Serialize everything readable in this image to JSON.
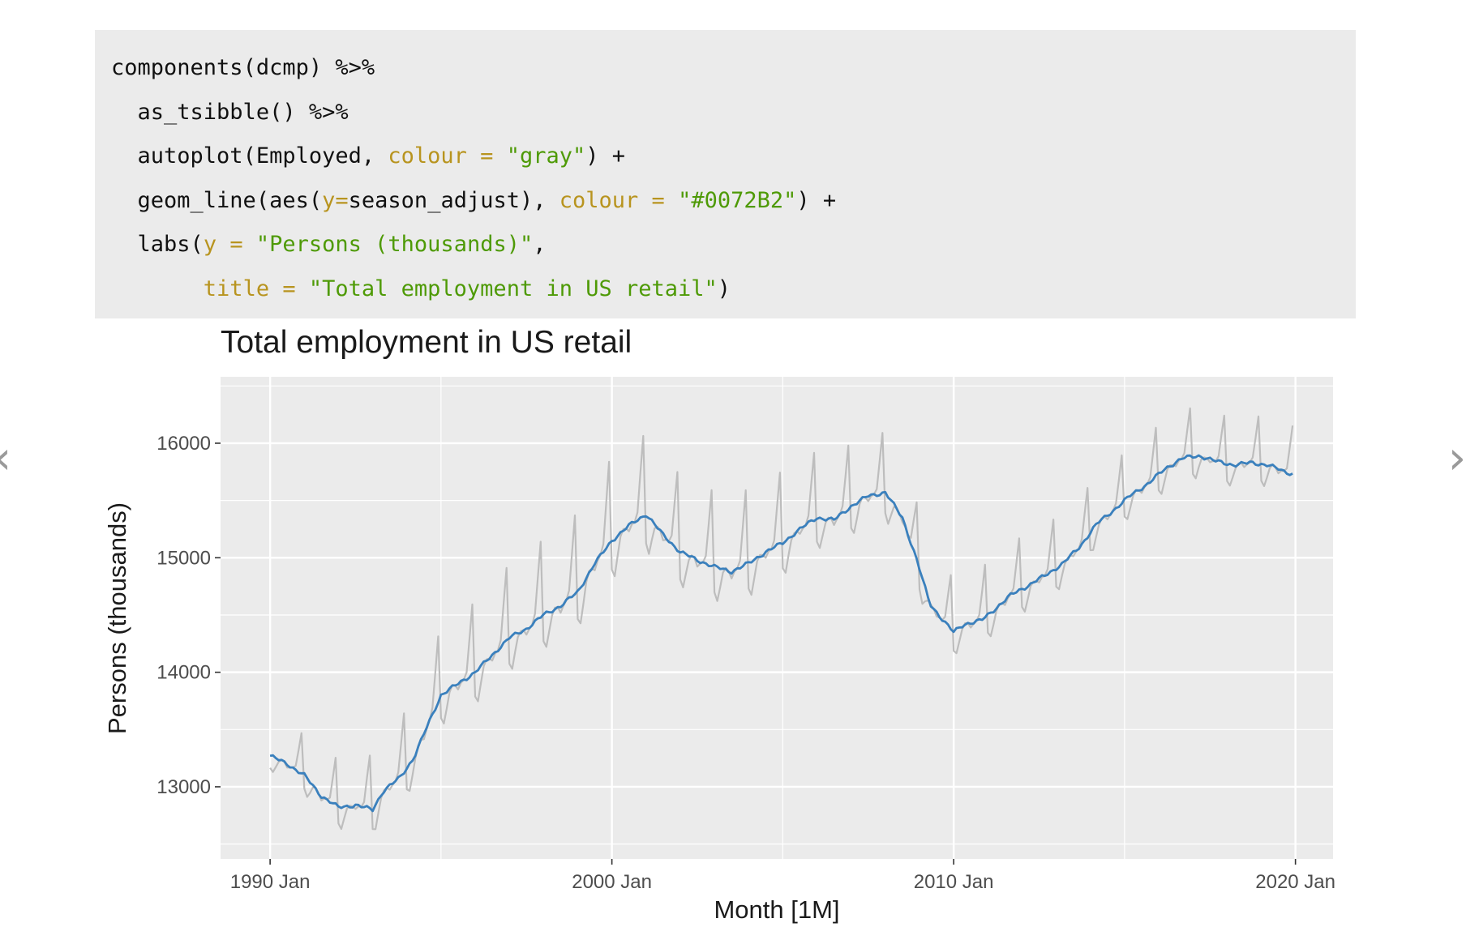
{
  "code": {
    "lines": [
      [
        {
          "t": "fn",
          "v": "components"
        },
        {
          "t": "op",
          "v": "(dcmp) %>%"
        }
      ],
      [
        {
          "t": "op",
          "v": "  "
        },
        {
          "t": "fn",
          "v": "as_tsibble"
        },
        {
          "t": "op",
          "v": "() %>%"
        }
      ],
      [
        {
          "t": "op",
          "v": "  "
        },
        {
          "t": "fn",
          "v": "autoplot"
        },
        {
          "t": "op",
          "v": "(Employed, "
        },
        {
          "t": "arg",
          "v": "colour ="
        },
        {
          "t": "op",
          "v": " "
        },
        {
          "t": "str",
          "v": "\"gray\""
        },
        {
          "t": "op",
          "v": ") +"
        }
      ],
      [
        {
          "t": "op",
          "v": "  "
        },
        {
          "t": "fn",
          "v": "geom_line"
        },
        {
          "t": "op",
          "v": "("
        },
        {
          "t": "fn",
          "v": "aes"
        },
        {
          "t": "op",
          "v": "("
        },
        {
          "t": "arg",
          "v": "y="
        },
        {
          "t": "op",
          "v": "season_adjust), "
        },
        {
          "t": "arg",
          "v": "colour ="
        },
        {
          "t": "op",
          "v": " "
        },
        {
          "t": "str",
          "v": "\"#0072B2\""
        },
        {
          "t": "op",
          "v": ") +"
        }
      ],
      [
        {
          "t": "op",
          "v": "  "
        },
        {
          "t": "fn",
          "v": "labs"
        },
        {
          "t": "op",
          "v": "("
        },
        {
          "t": "arg",
          "v": "y ="
        },
        {
          "t": "op",
          "v": " "
        },
        {
          "t": "str",
          "v": "\"Persons (thousands)\""
        },
        {
          "t": "op",
          "v": ","
        }
      ],
      [
        {
          "t": "op",
          "v": "       "
        },
        {
          "t": "arg",
          "v": "title ="
        },
        {
          "t": "op",
          "v": " "
        },
        {
          "t": "str",
          "v": "\"Total employment in US retail\""
        },
        {
          "t": "op",
          "v": ")"
        }
      ]
    ]
  },
  "nav": {
    "prev_icon": "chevron-left-icon",
    "next_icon": "chevron-right-icon",
    "prev_glyph": "‹",
    "next_glyph": "›"
  },
  "chart_data": {
    "type": "line",
    "title": "Total employment in US retail",
    "xlabel": "Month [1M]",
    "ylabel": "Persons (thousands)",
    "xlim": [
      1988.55,
      2021.1
    ],
    "ylim": [
      12370,
      16580
    ],
    "x_ticks": [
      1990,
      2000,
      2010,
      2020
    ],
    "x_tick_labels": [
      "1990 Jan",
      "2000 Jan",
      "2010 Jan",
      "2020 Jan"
    ],
    "y_ticks": [
      13000,
      14000,
      15000,
      16000
    ],
    "y_tick_labels": [
      "13000",
      "14000",
      "15000",
      "16000"
    ],
    "grid": true,
    "panel_background": "#ebebeb",
    "grid_color": "#ffffff",
    "trend_points": [
      [
        1990.0,
        13270
      ],
      [
        1990.5,
        13200
      ],
      [
        1991.0,
        13100
      ],
      [
        1991.5,
        12920
      ],
      [
        1992.0,
        12820
      ],
      [
        1992.5,
        12840
      ],
      [
        1993.0,
        12800
      ],
      [
        1993.3,
        12960
      ],
      [
        1993.8,
        13080
      ],
      [
        1994.2,
        13250
      ],
      [
        1994.6,
        13530
      ],
      [
        1995.0,
        13800
      ],
      [
        1995.5,
        13900
      ],
      [
        1996.0,
        14000
      ],
      [
        1996.5,
        14150
      ],
      [
        1997.0,
        14300
      ],
      [
        1997.5,
        14380
      ],
      [
        1998.0,
        14500
      ],
      [
        1998.5,
        14580
      ],
      [
        1999.0,
        14700
      ],
      [
        1999.5,
        14950
      ],
      [
        2000.0,
        15150
      ],
      [
        2000.5,
        15280
      ],
      [
        2001.0,
        15380
      ],
      [
        2001.5,
        15200
      ],
      [
        2002.0,
        15050
      ],
      [
        2002.5,
        14980
      ],
      [
        2003.0,
        14920
      ],
      [
        2003.5,
        14880
      ],
      [
        2004.0,
        14950
      ],
      [
        2004.5,
        15050
      ],
      [
        2005.0,
        15130
      ],
      [
        2005.5,
        15250
      ],
      [
        2006.0,
        15350
      ],
      [
        2006.5,
        15330
      ],
      [
        2007.0,
        15450
      ],
      [
        2007.5,
        15540
      ],
      [
        2008.0,
        15570
      ],
      [
        2008.5,
        15350
      ],
      [
        2008.9,
        15000
      ],
      [
        2009.3,
        14600
      ],
      [
        2009.7,
        14450
      ],
      [
        2010.0,
        14350
      ],
      [
        2010.3,
        14420
      ],
      [
        2010.8,
        14450
      ],
      [
        2011.2,
        14550
      ],
      [
        2011.7,
        14680
      ],
      [
        2012.2,
        14760
      ],
      [
        2012.7,
        14850
      ],
      [
        2013.2,
        14950
      ],
      [
        2013.7,
        15100
      ],
      [
        2014.2,
        15300
      ],
      [
        2014.7,
        15420
      ],
      [
        2015.2,
        15550
      ],
      [
        2015.7,
        15650
      ],
      [
        2016.2,
        15780
      ],
      [
        2016.7,
        15870
      ],
      [
        2017.2,
        15890
      ],
      [
        2017.7,
        15840
      ],
      [
        2018.2,
        15810
      ],
      [
        2018.7,
        15830
      ],
      [
        2019.2,
        15810
      ],
      [
        2019.7,
        15750
      ],
      [
        2019.95,
        15730
      ]
    ],
    "seasonal_amplitude": [
      [
        1990,
        300
      ],
      [
        1995,
        580
      ],
      [
        2000,
        720
      ],
      [
        2005,
        620
      ],
      [
        2008,
        520
      ],
      [
        2010,
        470
      ],
      [
        2015,
        420
      ],
      [
        2019.95,
        420
      ]
    ],
    "series": [
      {
        "name": "Employed",
        "color": "#bdbdbd",
        "seasonal": true
      },
      {
        "name": "season_adjust",
        "color": "#3a80bd",
        "seasonal": false
      }
    ]
  }
}
